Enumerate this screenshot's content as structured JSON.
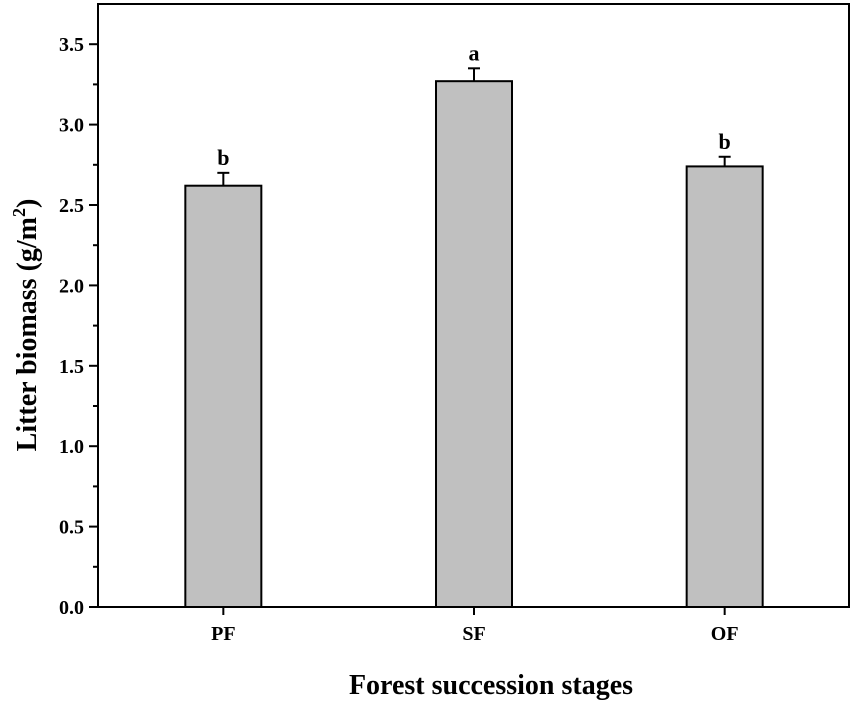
{
  "chart_data": {
    "type": "bar",
    "categories": [
      "PF",
      "SF",
      "OF"
    ],
    "values": [
      2.62,
      3.27,
      2.74
    ],
    "error": [
      0.08,
      0.08,
      0.06
    ],
    "significance": [
      "b",
      "a",
      "b"
    ],
    "xlabel": "Forest succession stages",
    "ylabel_main": "Litter biomass (g/m",
    "ylabel_sup": "2",
    "ylabel_close": ")",
    "ylim": [
      0,
      3.75
    ],
    "yticks": [
      "0.0",
      "0.5",
      "1.0",
      "1.5",
      "2.0",
      "2.5",
      "3.0",
      "3.5"
    ],
    "bar_color": "#c0c0c0",
    "grid": false
  }
}
